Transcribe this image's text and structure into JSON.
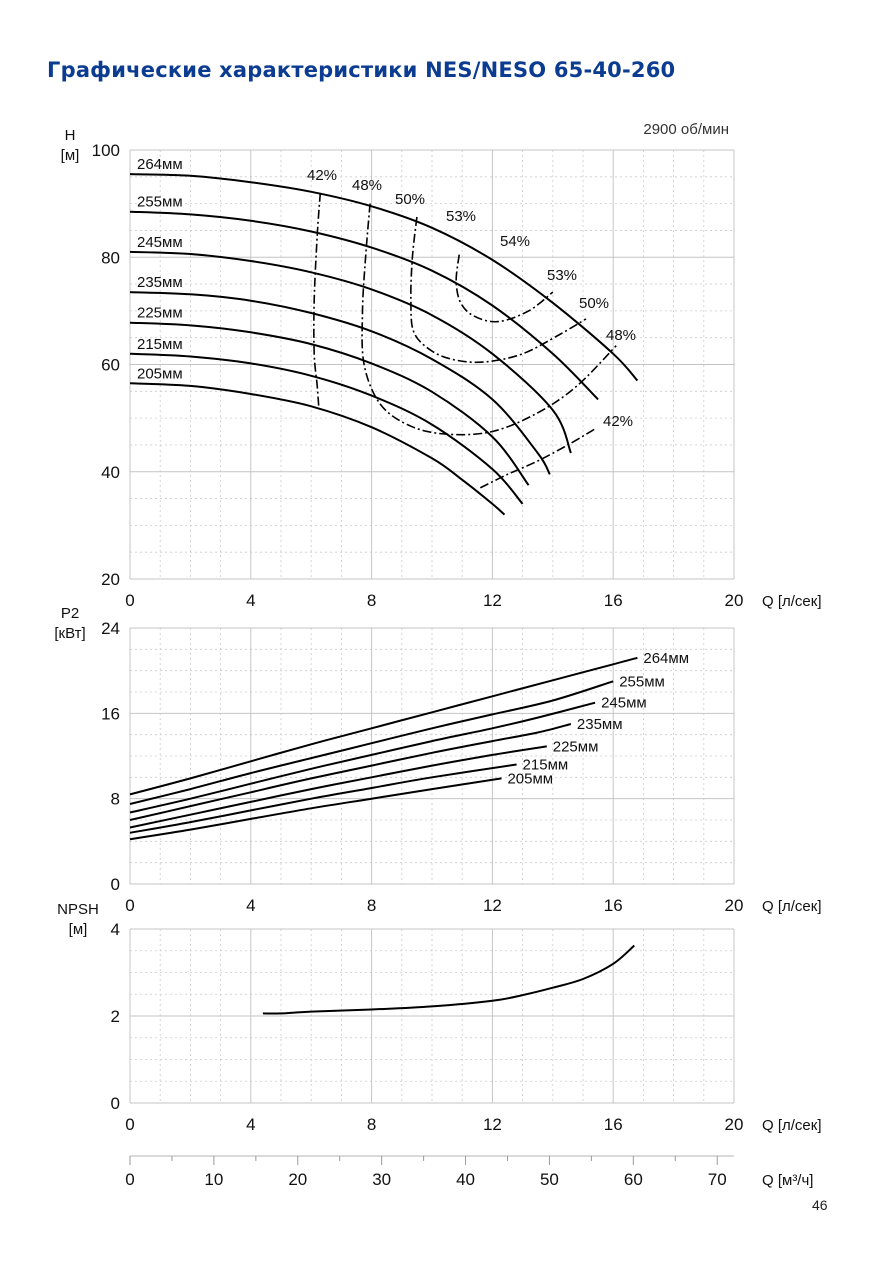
{
  "page": {
    "title": "Графические характеристики NES/NESO 65-40-260",
    "page_number": "46",
    "speed_label": "2900 об/мин",
    "colors": {
      "title": "#0b3c91",
      "grid": "#cccccc",
      "curve": "#000000"
    }
  },
  "chart_data": [
    {
      "id": "head",
      "type": "line",
      "ylabel_lines": [
        "H",
        "[м]"
      ],
      "xlabel": "Q [л/сек]",
      "xlim": [
        0,
        20
      ],
      "ylim": [
        20,
        100
      ],
      "xticks": [
        0,
        4,
        8,
        12,
        16,
        20
      ],
      "xtick_labels": [
        "0",
        "4",
        "8",
        "12",
        "16",
        "20"
      ],
      "yticks": [
        20,
        40,
        60,
        80,
        100
      ],
      "ytick_labels": [
        "20",
        "40",
        "60",
        "80",
        "100"
      ],
      "grid": true,
      "series": [
        {
          "name": "264мм",
          "x": [
            0,
            2,
            4,
            6,
            8,
            10,
            12,
            14,
            16,
            16.8
          ],
          "y": [
            95.5,
            95.2,
            94,
            92.2,
            89.5,
            85.5,
            79.5,
            71.5,
            62,
            57
          ]
        },
        {
          "name": "255мм",
          "x": [
            0,
            2,
            4,
            6,
            8,
            10,
            12,
            14,
            15.5
          ],
          "y": [
            88.5,
            88,
            86.8,
            84.8,
            81.8,
            77.5,
            71,
            62,
            53.5
          ]
        },
        {
          "name": "245мм",
          "x": [
            0,
            2,
            4,
            6,
            8,
            10,
            12,
            14,
            14.6
          ],
          "y": [
            81,
            80.6,
            79.3,
            77.2,
            74,
            69.2,
            62,
            51.5,
            43.5
          ]
        },
        {
          "name": "235мм",
          "x": [
            0,
            2,
            4,
            6,
            8,
            10,
            12,
            13.5,
            13.9
          ],
          "y": [
            73.5,
            73.1,
            71.9,
            69.6,
            66.2,
            61,
            53.5,
            43.5,
            39.5
          ]
        },
        {
          "name": "225мм",
          "x": [
            0,
            2,
            4,
            6,
            8,
            10,
            12,
            13.2
          ],
          "y": [
            67.8,
            67.3,
            66,
            63.8,
            60.2,
            54.9,
            46.5,
            37.5
          ]
        },
        {
          "name": "215мм",
          "x": [
            0,
            2,
            4,
            6,
            8,
            10,
            12,
            13.0
          ],
          "y": [
            62,
            61.5,
            60.2,
            57.9,
            54.2,
            48.8,
            40.5,
            34
          ]
        },
        {
          "name": "205мм",
          "x": [
            0,
            2,
            4,
            6,
            8,
            10,
            11,
            12,
            12.4
          ],
          "y": [
            56.5,
            56,
            54.5,
            52.2,
            48.3,
            42.5,
            38.5,
            34,
            32
          ]
        }
      ],
      "efficiency_labels": [
        "42%",
        "48%",
        "50%",
        "53%",
        "54%",
        "53%",
        "50%",
        "48%",
        "42%"
      ],
      "efficiency_curves": [
        {
          "name": "42%",
          "x": [
            6.3,
            6.2,
            6.1,
            6.1,
            6.2,
            6.25
          ],
          "y": [
            92,
            84,
            72,
            62,
            56,
            52
          ]
        },
        {
          "name": "48%",
          "x": [
            7.95,
            7.8,
            7.7,
            7.75,
            8.3,
            9.3,
            10.5,
            12,
            13.5,
            14.8,
            16.1
          ],
          "y": [
            90,
            80,
            70,
            60,
            52.5,
            48.5,
            47,
            47.5,
            51,
            56,
            63.5
          ]
        },
        {
          "name": "50%",
          "x": [
            9.5,
            9.35,
            9.3,
            9.4,
            10,
            10.8,
            11.8,
            13,
            14.2,
            15.1
          ],
          "y": [
            87.5,
            80,
            72,
            66,
            62.5,
            60.8,
            60.5,
            62,
            65.5,
            68.5
          ]
        },
        {
          "name": "53%",
          "x": [
            10.9,
            10.8,
            10.95,
            11.4,
            12.2,
            13.2,
            14.0
          ],
          "y": [
            80.5,
            75.5,
            71.5,
            69,
            68,
            70,
            73.5
          ]
        },
        {
          "name": "42%",
          "x": [
            11.6,
            12.5,
            13.5,
            14.5,
            15.4
          ],
          "y": [
            37,
            39.5,
            42,
            45,
            48
          ]
        }
      ]
    },
    {
      "id": "power",
      "type": "line",
      "ylabel_lines": [
        "P2",
        "[кВт]"
      ],
      "xlabel": "Q [л/сек]",
      "xlim": [
        0,
        20
      ],
      "ylim": [
        0,
        24
      ],
      "xticks": [
        0,
        4,
        8,
        12,
        16,
        20
      ],
      "xtick_labels": [
        "0",
        "4",
        "8",
        "12",
        "16",
        "20"
      ],
      "yticks": [
        0,
        8,
        16,
        24
      ],
      "ytick_labels": [
        "0",
        "8",
        "16",
        "24"
      ],
      "grid": true,
      "series": [
        {
          "name": "264мм",
          "x": [
            0,
            2,
            4,
            6,
            8,
            10,
            12,
            14,
            16,
            16.8
          ],
          "y": [
            8.4,
            9.9,
            11.5,
            13.1,
            14.6,
            16.1,
            17.6,
            19.1,
            20.6,
            21.2
          ]
        },
        {
          "name": "255мм",
          "x": [
            0,
            2,
            4,
            6,
            8,
            10,
            12,
            14,
            16
          ],
          "y": [
            7.5,
            8.9,
            10.4,
            11.8,
            13.2,
            14.6,
            15.9,
            17.2,
            19.0
          ]
        },
        {
          "name": "245мм",
          "x": [
            0,
            2,
            4,
            6,
            8,
            10,
            12,
            13.5,
            15.4
          ],
          "y": [
            6.7,
            8.0,
            9.4,
            10.8,
            12.1,
            13.4,
            14.6,
            15.6,
            17.0
          ]
        },
        {
          "name": "235мм",
          "x": [
            0,
            2,
            4,
            6,
            8,
            10,
            12,
            13.5,
            14.6
          ],
          "y": [
            6.0,
            7.3,
            8.6,
            9.9,
            11.1,
            12.3,
            13.4,
            14.2,
            15.0
          ]
        },
        {
          "name": "225мм",
          "x": [
            0,
            2,
            4,
            6,
            8,
            10,
            12,
            13.8
          ],
          "y": [
            5.3,
            6.5,
            7.7,
            8.9,
            10.0,
            11.1,
            12.1,
            12.9
          ]
        },
        {
          "name": "215мм",
          "x": [
            0,
            2,
            4,
            6,
            8,
            10,
            12.8
          ],
          "y": [
            4.8,
            5.8,
            6.9,
            8.0,
            9.0,
            10.0,
            11.2
          ]
        },
        {
          "name": "205мм",
          "x": [
            0,
            2,
            4,
            6,
            8,
            10,
            12.3
          ],
          "y": [
            4.2,
            5.1,
            6.1,
            7.1,
            8.0,
            8.9,
            9.9
          ]
        }
      ]
    },
    {
      "id": "npsh",
      "type": "line",
      "ylabel_lines": [
        "NPSH",
        "[м]"
      ],
      "xlabel": "Q [л/сек]",
      "xlim": [
        0,
        20
      ],
      "ylim": [
        0,
        4
      ],
      "xticks": [
        0,
        4,
        8,
        12,
        16,
        20
      ],
      "xtick_labels": [
        "0",
        "4",
        "8",
        "12",
        "16",
        "20"
      ],
      "yticks": [
        0,
        2,
        4
      ],
      "ytick_labels": [
        "0",
        "2",
        "4"
      ],
      "grid": true,
      "series": [
        {
          "x": [
            4.4,
            5,
            6,
            8,
            10,
            12,
            13,
            14,
            15,
            16,
            16.7
          ],
          "y": [
            2.06,
            2.06,
            2.1,
            2.15,
            2.22,
            2.35,
            2.48,
            2.65,
            2.85,
            3.2,
            3.62
          ]
        }
      ],
      "secondary_x_axis": {
        "label": "Q [м³/ч]",
        "xlim": [
          0,
          72
        ],
        "ticks": [
          0,
          10,
          20,
          30,
          40,
          50,
          60,
          70
        ],
        "tick_labels": [
          "0",
          "10",
          "20",
          "30",
          "40",
          "50",
          "60",
          "70"
        ]
      }
    }
  ]
}
